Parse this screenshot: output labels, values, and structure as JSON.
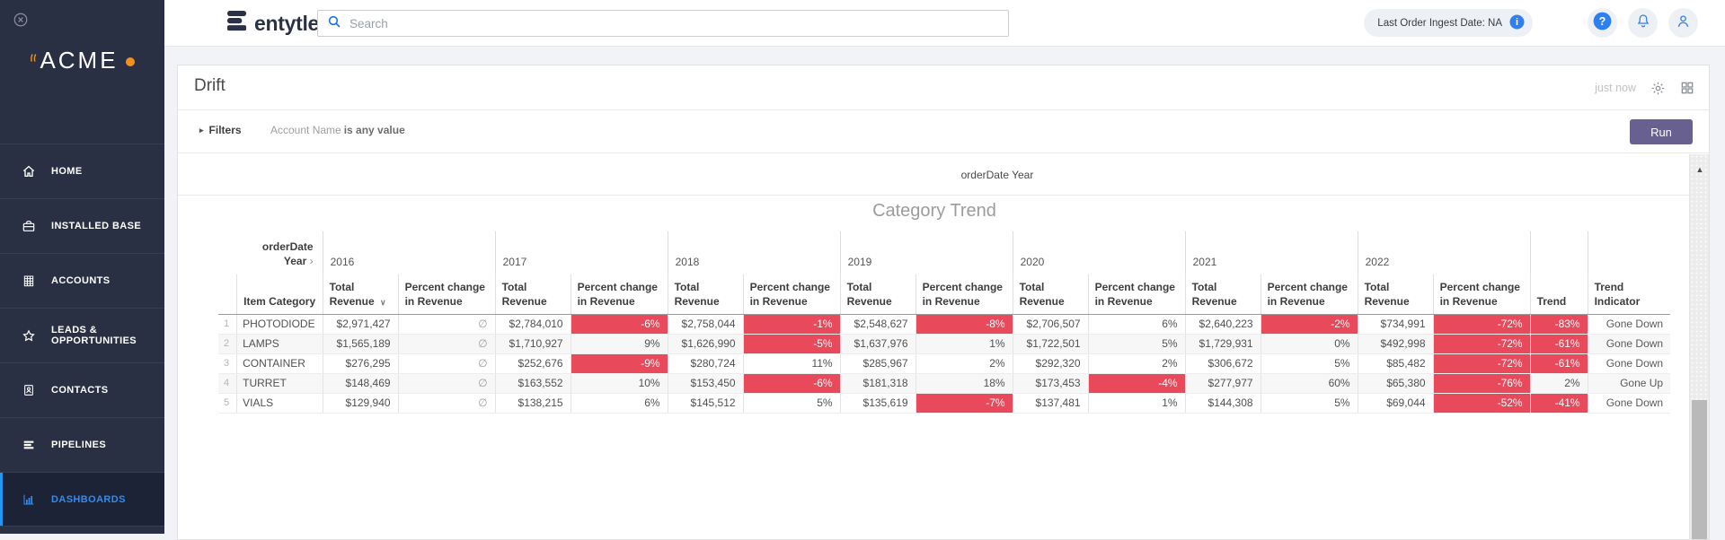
{
  "sidebar": {
    "logo": {
      "text": "ACME",
      "accent_color": "#ef9120"
    },
    "items": [
      {
        "label": "HOME",
        "icon": "home-icon",
        "active": false
      },
      {
        "label": "INSTALLED BASE",
        "icon": "installed-base-icon",
        "active": false
      },
      {
        "label": "ACCOUNTS",
        "icon": "accounts-icon",
        "active": false
      },
      {
        "label": "LEADS & OPPORTUNITIES",
        "icon": "leads-star-icon",
        "active": false
      },
      {
        "label": "CONTACTS",
        "icon": "contacts-icon",
        "active": false
      },
      {
        "label": "PIPELINES",
        "icon": "pipelines-icon",
        "active": false
      },
      {
        "label": "DASHBOARDS",
        "icon": "dashboards-icon",
        "active": true
      }
    ]
  },
  "header": {
    "brand": "entytle",
    "search_placeholder": "Search",
    "ingest_badge": "Last Order Ingest Date: NA"
  },
  "page": {
    "title": "Drift",
    "updated": "just now",
    "filters_label": "Filters",
    "filter_field": "Account Name",
    "filter_op": "is any value",
    "run_label": "Run"
  },
  "colors": {
    "negative_cell": "#e8495b",
    "accent_blue": "#2f80ed",
    "run_purple": "#68608e"
  },
  "chart_data": {
    "type": "table",
    "title": "Category Trend",
    "pivot_label": "orderDate Year",
    "years": [
      "2016",
      "2017",
      "2018",
      "2019",
      "2020",
      "2021",
      "2022"
    ],
    "measure_headers": {
      "total": "Total Revenue",
      "pct": "Percent change in Revenue"
    },
    "item_header": "Item Category",
    "trend_header": "Trend",
    "trend_indicator_header": "Trend Indicator",
    "rows": [
      {
        "num": "1",
        "item": "PHOTODIODE",
        "cells": [
          [
            "$2,971,427",
            "∅"
          ],
          [
            "$2,784,010",
            "-6%"
          ],
          [
            "$2,758,044",
            "-1%"
          ],
          [
            "$2,548,627",
            "-8%"
          ],
          [
            "$2,706,507",
            "6%"
          ],
          [
            "$2,640,223",
            "-2%"
          ],
          [
            "$734,991",
            "-72%"
          ]
        ],
        "trend": "-83%",
        "indicator": "Gone Down"
      },
      {
        "num": "2",
        "item": "LAMPS",
        "cells": [
          [
            "$1,565,189",
            "∅"
          ],
          [
            "$1,710,927",
            "9%"
          ],
          [
            "$1,626,990",
            "-5%"
          ],
          [
            "$1,637,976",
            "1%"
          ],
          [
            "$1,722,501",
            "5%"
          ],
          [
            "$1,729,931",
            "0%"
          ],
          [
            "$492,998",
            "-72%"
          ]
        ],
        "trend": "-61%",
        "indicator": "Gone Down"
      },
      {
        "num": "3",
        "item": "CONTAINER",
        "cells": [
          [
            "$276,295",
            "∅"
          ],
          [
            "$252,676",
            "-9%"
          ],
          [
            "$280,724",
            "11%"
          ],
          [
            "$285,967",
            "2%"
          ],
          [
            "$292,320",
            "2%"
          ],
          [
            "$306,672",
            "5%"
          ],
          [
            "$85,482",
            "-72%"
          ]
        ],
        "trend": "-61%",
        "indicator": "Gone Down"
      },
      {
        "num": "4",
        "item": "TURRET",
        "cells": [
          [
            "$148,469",
            "∅"
          ],
          [
            "$163,552",
            "10%"
          ],
          [
            "$153,450",
            "-6%"
          ],
          [
            "$181,318",
            "18%"
          ],
          [
            "$173,453",
            "-4%"
          ],
          [
            "$277,977",
            "60%"
          ],
          [
            "$65,380",
            "-76%"
          ]
        ],
        "trend": "2%",
        "indicator": "Gone Up"
      },
      {
        "num": "5",
        "item": "VIALS",
        "cells": [
          [
            "$129,940",
            "∅"
          ],
          [
            "$138,215",
            "6%"
          ],
          [
            "$145,512",
            "5%"
          ],
          [
            "$135,619",
            "-7%"
          ],
          [
            "$137,481",
            "1%"
          ],
          [
            "$144,308",
            "5%"
          ],
          [
            "$69,044",
            "-52%"
          ]
        ],
        "trend": "-41%",
        "indicator": "Gone Down"
      }
    ]
  }
}
